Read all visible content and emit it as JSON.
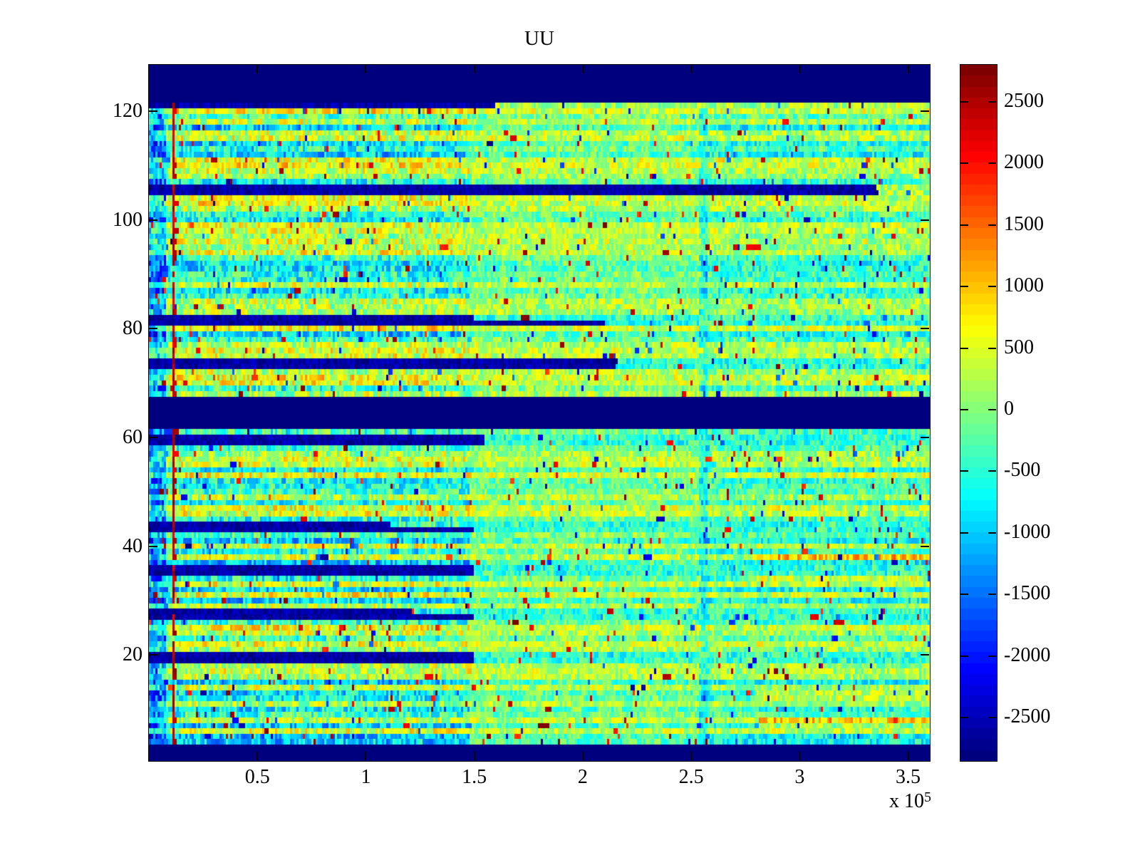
{
  "title": "UU",
  "axes": {
    "x_exponent_prefix": "x 10",
    "x_exponent": "5",
    "x_ticks": [
      {
        "value": 50000,
        "label": "0.5"
      },
      {
        "value": 100000,
        "label": "1"
      },
      {
        "value": 150000,
        "label": "1.5"
      },
      {
        "value": 200000,
        "label": "2"
      },
      {
        "value": 250000,
        "label": "2.5"
      },
      {
        "value": 300000,
        "label": "3"
      },
      {
        "value": 350000,
        "label": "3.5"
      }
    ],
    "y_ticks": [
      {
        "value": 20,
        "label": "20"
      },
      {
        "value": 40,
        "label": "40"
      },
      {
        "value": 60,
        "label": "60"
      },
      {
        "value": 80,
        "label": "80"
      },
      {
        "value": 100,
        "label": "100"
      },
      {
        "value": 120,
        "label": "120"
      }
    ]
  },
  "colorbar": {
    "vmin": -2853,
    "vmax": 2800,
    "levels": 64,
    "ticks": [
      {
        "value": 2500,
        "label": "2500"
      },
      {
        "value": 2000,
        "label": "2000"
      },
      {
        "value": 1500,
        "label": "1500"
      },
      {
        "value": 1000,
        "label": "1000"
      },
      {
        "value": 500,
        "label": "500"
      },
      {
        "value": 0,
        "label": "0"
      },
      {
        "value": -500,
        "label": "-500"
      },
      {
        "value": -1000,
        "label": "-1000"
      },
      {
        "value": -1500,
        "label": "-1500"
      },
      {
        "value": -2000,
        "label": "-2000"
      },
      {
        "value": -2500,
        "label": "-2500"
      }
    ]
  },
  "chart_data": {
    "type": "heatmap",
    "title": "UU",
    "colormap": "jet",
    "x_range": [
      0,
      360000
    ],
    "x_scale_exponent": 5,
    "y_range": [
      0.5,
      128.5
    ],
    "rows": 128,
    "columns": 365,
    "color_range": [
      -2853,
      2800
    ],
    "colorbar_tick_values": [
      2500,
      2000,
      1500,
      1000,
      500,
      0,
      -500,
      -1000,
      -1500,
      -2000,
      -2500
    ],
    "x_tick_values": [
      50000,
      100000,
      150000,
      200000,
      250000,
      300000,
      350000
    ],
    "y_tick_values": [
      20,
      40,
      60,
      80,
      100,
      120
    ],
    "solid_low_bands_rows": [
      [
        1,
        3
      ],
      [
        62,
        67
      ],
      [
        122,
        128
      ]
    ],
    "dark_streak_rows": [
      {
        "row": 19,
        "fade_x": 150000
      },
      {
        "row": 20,
        "fade_x": 150000
      },
      {
        "row": 27,
        "fade_x": 150000
      },
      {
        "row": 28,
        "fade_x": 120000
      },
      {
        "row": 35,
        "fade_x": 150000
      },
      {
        "row": 36,
        "fade_x": 150000
      },
      {
        "row": 43,
        "fade_x": 150000
      },
      {
        "row": 44,
        "fade_x": 110000
      },
      {
        "row": 59,
        "fade_x": 155000
      },
      {
        "row": 60,
        "fade_x": 155000
      },
      {
        "row": 73,
        "fade_x": 215000
      },
      {
        "row": 74,
        "fade_x": 215000
      },
      {
        "row": 81,
        "fade_x": 210000
      },
      {
        "row": 82,
        "fade_x": 150000
      },
      {
        "row": 105,
        "fade_x": 335000
      },
      {
        "row": 106,
        "fade_x": 335000
      },
      {
        "row": 121,
        "fade_x": 160000
      }
    ],
    "right_warm_rows": [
      7,
      8,
      12,
      13,
      34,
      38
    ],
    "red_line_x": 10500,
    "left_cool_strip_x_max": 8000,
    "texture_sections": [
      {
        "x_from": 11000,
        "x_to": 148000,
        "gain": 1.0,
        "offset": 0,
        "noise": 700
      },
      {
        "x_from": 148000,
        "x_to": 253000,
        "gain": 0.45,
        "offset": 130,
        "noise": 520
      },
      {
        "x_from": 253000,
        "x_to": 257000,
        "gain": 0.5,
        "offset": -500,
        "noise": 520
      },
      {
        "x_from": 257000,
        "x_to": 360000,
        "gain": 0.65,
        "offset": -40,
        "noise": 560
      }
    ],
    "render_seed": 42
  }
}
